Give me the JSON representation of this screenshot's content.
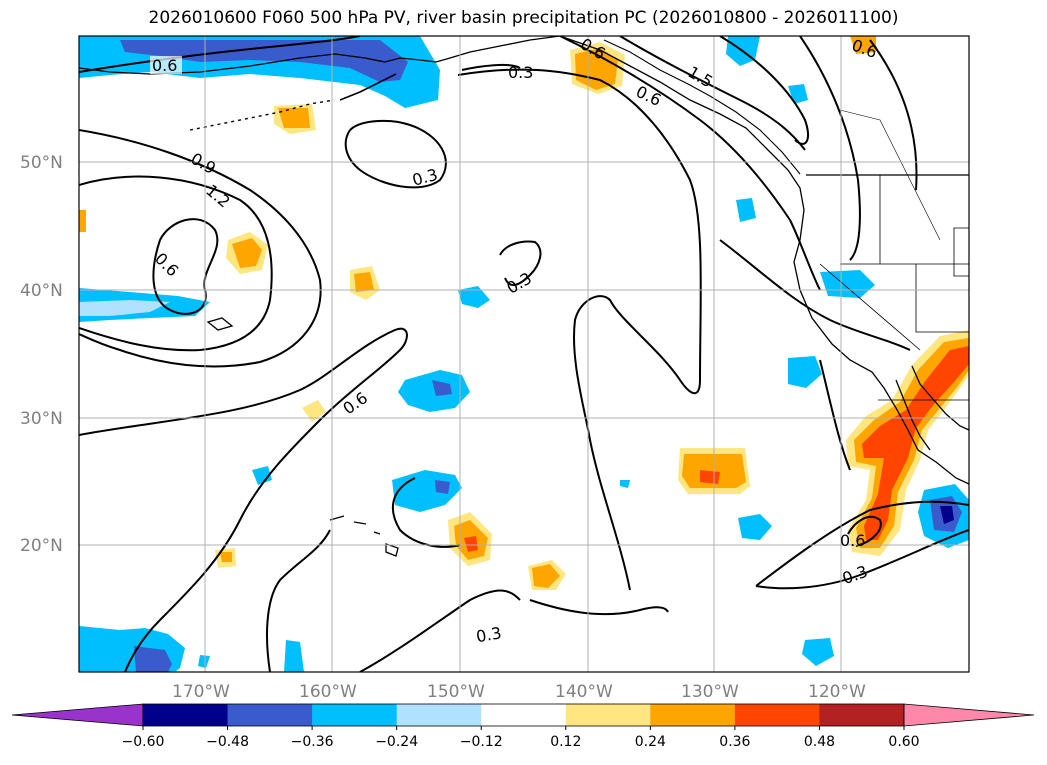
{
  "title": "2026010600 F060 500 hPa PV, river basin precipitation PC (2026010800 - 2026011100)",
  "map": {
    "lat_labels": [
      "50°N",
      "40°N",
      "30°N",
      "20°N"
    ],
    "lon_labels": [
      "170°W",
      "160°W",
      "150°W",
      "140°W",
      "130°W",
      "120°W"
    ]
  },
  "contour_labels": [
    "0.6",
    "0.3",
    "0.6",
    "1.5",
    "0.6",
    "0.6",
    "0.9",
    "1.2",
    "0.6",
    "0.3",
    "0.3",
    "0.6",
    "0.3"
  ],
  "colorbar": {
    "ticks": [
      "−0.60",
      "−0.48",
      "−0.36",
      "−0.24",
      "−0.12",
      "0.12",
      "0.24",
      "0.36",
      "0.48",
      "0.60"
    ],
    "colors": [
      "#9933cc",
      "#00008b",
      "#3a5bcc",
      "#00bfff",
      "#b0e2ff",
      "#ffffff",
      "#ffe680",
      "#ffa500",
      "#ff4500",
      "#b22222",
      "#ff88aa"
    ]
  }
}
